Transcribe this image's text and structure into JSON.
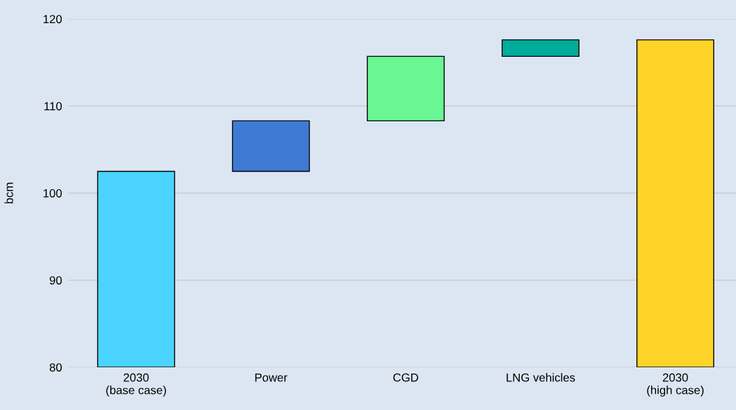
{
  "chart_data": {
    "type": "bar",
    "ylabel": "bcm",
    "categories": [
      "2030\n(base case)",
      "Power",
      "CGD",
      "LNG vehicles",
      "2030\n(high case)"
    ],
    "values": [
      22.5,
      5.8,
      7.4,
      1.9,
      37.6
    ],
    "base": [
      80,
      102.5,
      108.3,
      115.7,
      80
    ],
    "colors": [
      "#4ad4ff",
      "#3e7ad4",
      "#6af794",
      "#00ac9c",
      "#ffd42a"
    ],
    "ylim": [
      80,
      120
    ],
    "yticks": [
      80,
      90,
      100,
      110,
      120
    ],
    "grid": "y",
    "legend": false
  }
}
